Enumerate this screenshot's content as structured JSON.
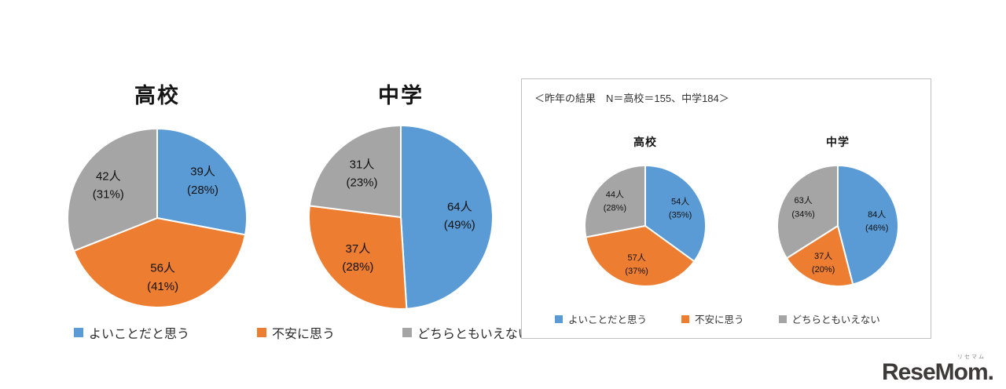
{
  "colors": {
    "blue": "#5B9BD5",
    "orange": "#ED7D31",
    "gray": "#A5A5A5",
    "background": "#FFFFFF",
    "box_border": "#BFBFBF"
  },
  "legend": {
    "items": [
      {
        "label": "よいことだと思う",
        "color": "#5B9BD5"
      },
      {
        "label": "不安に思う",
        "color": "#ED7D31"
      },
      {
        "label": "どちらともいえない",
        "color": "#A5A5A5"
      }
    ]
  },
  "last_year_box": {
    "title": "＜昨年の結果　N＝高校＝155、中学184＞"
  },
  "logo": {
    "main": "ReseMom",
    "dot": ".",
    "sub": "リセマム"
  },
  "chart_data": [
    {
      "type": "pie",
      "title": "高校",
      "panel": "current-year",
      "legend_position": "bottom",
      "start_angle": "12-oclock-clockwise",
      "segments": [
        {
          "label": "よいことだと思う",
          "count": 39,
          "count_label": "39人",
          "percent": 28,
          "percent_label": "(28%)",
          "color": "#5B9BD5"
        },
        {
          "label": "不安に思う",
          "count": 56,
          "count_label": "56人",
          "percent": 41,
          "percent_label": "(41%)",
          "color": "#ED7D31"
        },
        {
          "label": "どちらともいえない",
          "count": 42,
          "count_label": "42人",
          "percent": 31,
          "percent_label": "(31%)",
          "color": "#A5A5A5"
        }
      ]
    },
    {
      "type": "pie",
      "title": "中学",
      "panel": "current-year",
      "legend_position": "bottom",
      "start_angle": "12-oclock-clockwise",
      "segments": [
        {
          "label": "よいことだと思う",
          "count": 64,
          "count_label": "64人",
          "percent": 49,
          "percent_label": "(49%)",
          "color": "#5B9BD5"
        },
        {
          "label": "不安に思う",
          "count": 37,
          "count_label": "37人",
          "percent": 28,
          "percent_label": "(28%)",
          "color": "#ED7D31"
        },
        {
          "label": "どちらともいえない",
          "count": 31,
          "count_label": "31人",
          "percent": 23,
          "percent_label": "(23%)",
          "color": "#A5A5A5"
        }
      ]
    },
    {
      "type": "pie",
      "title": "高校",
      "panel": "last-year",
      "legend_position": "bottom",
      "start_angle": "12-oclock-clockwise",
      "segments": [
        {
          "label": "よいことだと思う",
          "count": 54,
          "count_label": "54人",
          "percent": 35,
          "percent_label": "(35%)",
          "color": "#5B9BD5"
        },
        {
          "label": "不安に思う",
          "count": 57,
          "count_label": "57人",
          "percent": 37,
          "percent_label": "(37%)",
          "color": "#ED7D31"
        },
        {
          "label": "どちらともいえない",
          "count": 44,
          "count_label": "44人",
          "percent": 28,
          "percent_label": "(28%)",
          "color": "#A5A5A5"
        }
      ]
    },
    {
      "type": "pie",
      "title": "中学",
      "panel": "last-year",
      "legend_position": "bottom",
      "start_angle": "12-oclock-clockwise",
      "segments": [
        {
          "label": "よいことだと思う",
          "count": 84,
          "count_label": "84人",
          "percent": 46,
          "percent_label": "(46%)",
          "color": "#5B9BD5"
        },
        {
          "label": "不安に思う",
          "count": 37,
          "count_label": "37人",
          "percent": 20,
          "percent_label": "(20%)",
          "color": "#ED7D31"
        },
        {
          "label": "どちらともいえない",
          "count": 63,
          "count_label": "63人",
          "percent": 34,
          "percent_label": "(34%)",
          "color": "#A5A5A5"
        }
      ]
    }
  ]
}
